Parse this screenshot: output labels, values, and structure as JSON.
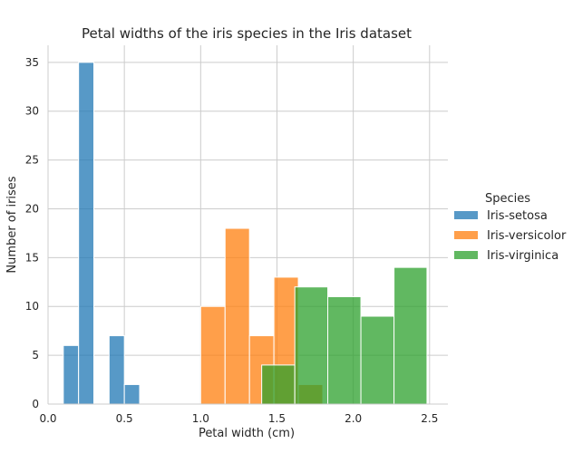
{
  "chart_data": {
    "type": "bar",
    "title": "Petal widths of the iris species in the Iris dataset",
    "xlabel": "Petal width (cm)",
    "ylabel": "Number of irises",
    "xlim": [
      0.0,
      2.62
    ],
    "ylim": [
      0,
      36.75
    ],
    "xticks": [
      0.0,
      0.5,
      1.0,
      1.5,
      2.0,
      2.5
    ],
    "xtick_labels": [
      "0.0",
      "0.5",
      "1.0",
      "1.5",
      "2.0",
      "2.5"
    ],
    "yticks": [
      0,
      5,
      10,
      15,
      20,
      25,
      30,
      35
    ],
    "ytick_labels": [
      "0",
      "5",
      "10",
      "15",
      "20",
      "25",
      "30",
      "35"
    ],
    "grid": true,
    "legend": {
      "title": "Species",
      "position": "right"
    },
    "series": [
      {
        "name": "Iris-setosa",
        "color": "#1f77b4",
        "bins": [
          {
            "x0": 0.1,
            "x1": 0.2,
            "count": 6
          },
          {
            "x0": 0.2,
            "x1": 0.3,
            "count": 35
          },
          {
            "x0": 0.4,
            "x1": 0.5,
            "count": 7
          },
          {
            "x0": 0.5,
            "x1": 0.6,
            "count": 2
          }
        ]
      },
      {
        "name": "Iris-versicolor",
        "color": "#ff7f0e",
        "bins": [
          {
            "x0": 1.0,
            "x1": 1.16,
            "count": 10
          },
          {
            "x0": 1.16,
            "x1": 1.32,
            "count": 18
          },
          {
            "x0": 1.32,
            "x1": 1.48,
            "count": 7
          },
          {
            "x0": 1.48,
            "x1": 1.64,
            "count": 13
          },
          {
            "x0": 1.64,
            "x1": 1.8,
            "count": 2
          }
        ]
      },
      {
        "name": "Iris-virginica",
        "color": "#2ca02c",
        "bins": [
          {
            "x0": 1.4,
            "x1": 1.617,
            "count": 4
          },
          {
            "x0": 1.617,
            "x1": 1.833,
            "count": 12
          },
          {
            "x0": 1.833,
            "x1": 2.05,
            "count": 11
          },
          {
            "x0": 2.05,
            "x1": 2.267,
            "count": 9
          },
          {
            "x0": 2.267,
            "x1": 2.483,
            "count": 14
          }
        ]
      }
    ]
  }
}
